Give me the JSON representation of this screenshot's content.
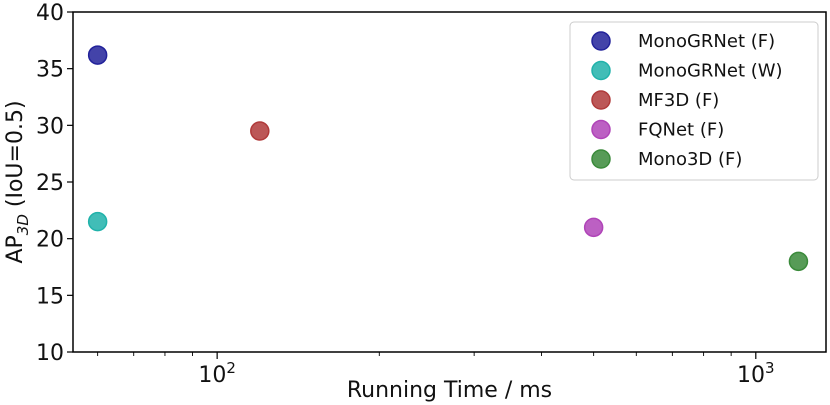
{
  "chart_data": {
    "type": "scatter",
    "xlabel": "Running Time / ms",
    "ylabel": {
      "prefix": "AP",
      "subscript": "3D",
      "suffix": " (IoU=0.5)"
    },
    "x_scale": "log",
    "xlim": [
      54,
      1350
    ],
    "ylim": [
      10,
      40
    ],
    "x_major_ticks": [
      {
        "value": 100,
        "base": "10",
        "exp": "2"
      },
      {
        "value": 1000,
        "base": "10",
        "exp": "3"
      }
    ],
    "y_ticks": [
      10,
      15,
      20,
      25,
      30,
      35,
      40
    ],
    "grid": false,
    "legend_position": "top-right",
    "series": [
      {
        "name": "MonoGRNet (F)",
        "color": "#22229a",
        "points": [
          {
            "x": 60,
            "y": 36.2
          }
        ]
      },
      {
        "name": "MonoGRNet (W)",
        "color": "#20b2aa",
        "points": [
          {
            "x": 60,
            "y": 21.5
          }
        ]
      },
      {
        "name": "MF3D (F)",
        "color": "#b03a3a",
        "points": [
          {
            "x": 120,
            "y": 29.5
          }
        ]
      },
      {
        "name": "FQNet (F)",
        "color": "#b044b8",
        "points": [
          {
            "x": 500,
            "y": 21.0
          }
        ]
      },
      {
        "name": "Mono3D (F)",
        "color": "#3a8a3a",
        "points": [
          {
            "x": 1200,
            "y": 18.0
          }
        ]
      }
    ]
  }
}
